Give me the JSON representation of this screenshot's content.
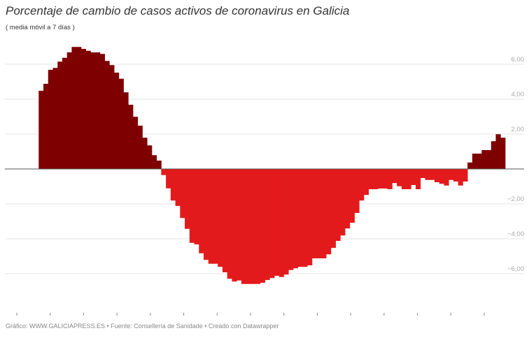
{
  "header": {
    "title": "Porcentaje de cambio de casos activos de coronavirus en Galicia",
    "subtitle": "( media móvil a 7 días )"
  },
  "footer": {
    "text": "Gráfico: WWW.GALICIAPRESS.ES • Fuente: Consellería de Sanidade • Creado con Datawrapper"
  },
  "colors": {
    "positive": "#7f0000",
    "negative": "#e31a1c",
    "grid": "#e6e6e6",
    "baseline": "#555555",
    "tick": "#888888"
  },
  "chart_data": {
    "type": "bar",
    "title": "Porcentaje de cambio de casos activos de coronavirus en Galicia",
    "subtitle": "( media móvil a 7 días )",
    "xlabel": "",
    "ylabel": "",
    "ylim": [
      -8,
      8
    ],
    "yticks": [
      6,
      4,
      2,
      0,
      -2,
      -4,
      -6
    ],
    "ytick_labels": [
      "6,00",
      "4,00",
      "2,00",
      "",
      "−2,00",
      "−4,00",
      "−6,00"
    ],
    "grid": true,
    "x_tick_count": 15,
    "legend": null,
    "values": [
      4.48,
      4.88,
      5.68,
      5.79,
      6.15,
      6.37,
      6.68,
      6.99,
      6.99,
      6.88,
      6.77,
      6.68,
      6.68,
      6.59,
      6.19,
      5.95,
      5.52,
      5.17,
      4.39,
      3.68,
      2.99,
      2.48,
      1.79,
      1.35,
      0.79,
      0.48,
      -0.35,
      -1.11,
      -1.81,
      -2.12,
      -2.81,
      -3.43,
      -4.23,
      -4.32,
      -4.83,
      -5.21,
      -5.43,
      -5.43,
      -5.61,
      -5.92,
      -6.29,
      -6.45,
      -6.39,
      -6.59,
      -6.59,
      -6.59,
      -6.59,
      -6.52,
      -6.36,
      -6.25,
      -6.12,
      -6.19,
      -6.05,
      -5.79,
      -5.69,
      -5.61,
      -5.61,
      -5.52,
      -5.12,
      -5.12,
      -5.12,
      -4.89,
      -4.52,
      -4.12,
      -3.81,
      -3.41,
      -3.08,
      -2.52,
      -1.81,
      -1.49,
      -1.16,
      -1.16,
      -1.12,
      -1.12,
      -1.16,
      -0.81,
      -0.99,
      -1.16,
      -1.16,
      -0.92,
      -1.16,
      -0.52,
      -0.63,
      -0.63,
      -0.76,
      -0.85,
      -0.95,
      -0.63,
      -0.72,
      -0.95,
      -0.72,
      0.37,
      0.88,
      0.88,
      1.08,
      1.08,
      1.59,
      1.99,
      1.79
    ]
  }
}
